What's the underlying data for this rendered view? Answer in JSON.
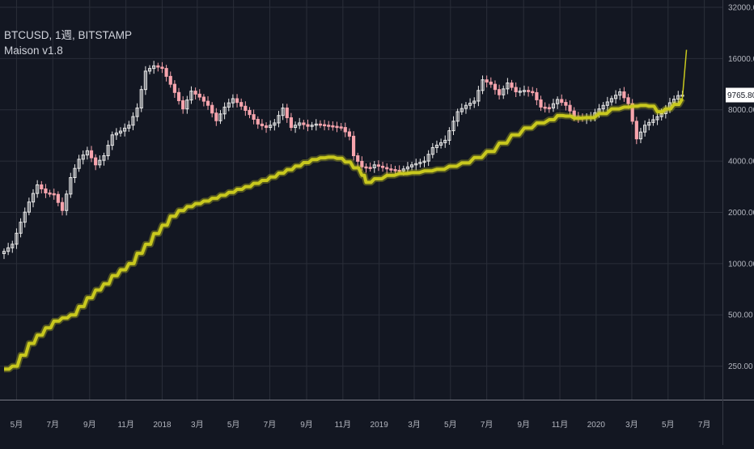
{
  "legend": {
    "symbol": "BTCUSD, 1週, BITSTAMP",
    "indicator": "Maison v1.8"
  },
  "colors": {
    "background": "#131722",
    "grid": "#2a2e39",
    "axis_text": "#b2b5be",
    "candle_up": "#e8e8e8",
    "candle_down": "#f7a4ad",
    "indicator": "#c8c81e",
    "price_label_bg": "#ffffff",
    "price_label_text": "#131722"
  },
  "chart_data": {
    "type": "candlestick",
    "title": "BTCUSD, 1週, BITSTAMP",
    "y_scale": "log",
    "ylim": [
      200,
      32000
    ],
    "xlim": [
      "2017-04-10",
      "2020-08-10"
    ],
    "grid": true,
    "y_ticks": [
      {
        "value": 32000,
        "label": "32000.00"
      },
      {
        "value": 16000,
        "label": "16000.00"
      },
      {
        "value": 8000,
        "label": "8000.00"
      },
      {
        "value": 4000,
        "label": "4000.00"
      },
      {
        "value": 2000,
        "label": "2000.00"
      },
      {
        "value": 1000,
        "label": "1000.00"
      },
      {
        "value": 500,
        "label": "500.00"
      },
      {
        "value": 250,
        "label": "250.00"
      }
    ],
    "x_ticks": [
      {
        "date": "2017-05-01",
        "label": "5月"
      },
      {
        "date": "2017-07-01",
        "label": "7月"
      },
      {
        "date": "2017-09-01",
        "label": "9月"
      },
      {
        "date": "2017-11-01",
        "label": "11月"
      },
      {
        "date": "2018-01-01",
        "label": "2018"
      },
      {
        "date": "2018-03-01",
        "label": "3月"
      },
      {
        "date": "2018-05-01",
        "label": "5月"
      },
      {
        "date": "2018-07-01",
        "label": "7月"
      },
      {
        "date": "2018-09-01",
        "label": "9月"
      },
      {
        "date": "2018-11-01",
        "label": "11月"
      },
      {
        "date": "2019-01-01",
        "label": "2019"
      },
      {
        "date": "2019-03-01",
        "label": "3月"
      },
      {
        "date": "2019-05-01",
        "label": "5月"
      },
      {
        "date": "2019-07-01",
        "label": "7月"
      },
      {
        "date": "2019-09-01",
        "label": "9月"
      },
      {
        "date": "2019-11-01",
        "label": "11月"
      },
      {
        "date": "2020-01-01",
        "label": "2020"
      },
      {
        "date": "2020-03-01",
        "label": "3月"
      },
      {
        "date": "2020-05-01",
        "label": "5月"
      },
      {
        "date": "2020-07-01",
        "label": "7月"
      }
    ],
    "last_price": {
      "value": 9765.8,
      "label": "9765.80"
    },
    "close_anchors": [
      [
        "2017-04-10",
        1180
      ],
      [
        "2017-04-24",
        1300
      ],
      [
        "2017-05-08",
        1750
      ],
      [
        "2017-05-22",
        2300
      ],
      [
        "2017-06-05",
        2900
      ],
      [
        "2017-06-19",
        2600
      ],
      [
        "2017-07-03",
        2550
      ],
      [
        "2017-07-17",
        2050
      ],
      [
        "2017-07-31",
        3200
      ],
      [
        "2017-08-14",
        4100
      ],
      [
        "2017-08-28",
        4600
      ],
      [
        "2017-09-11",
        3800
      ],
      [
        "2017-09-25",
        4300
      ],
      [
        "2017-10-09",
        5700
      ],
      [
        "2017-10-23",
        6000
      ],
      [
        "2017-11-06",
        6500
      ],
      [
        "2017-11-20",
        8200
      ],
      [
        "2017-12-04",
        13500
      ],
      [
        "2017-12-18",
        14500
      ],
      [
        "2018-01-01",
        14000
      ],
      [
        "2018-01-15",
        11300
      ],
      [
        "2018-02-05",
        8100
      ],
      [
        "2018-02-19",
        10300
      ],
      [
        "2018-03-05",
        9500
      ],
      [
        "2018-03-19",
        8500
      ],
      [
        "2018-04-02",
        6900
      ],
      [
        "2018-04-16",
        8300
      ],
      [
        "2018-04-30",
        9300
      ],
      [
        "2018-05-14",
        8400
      ],
      [
        "2018-05-28",
        7500
      ],
      [
        "2018-06-11",
        6600
      ],
      [
        "2018-06-25",
        6300
      ],
      [
        "2018-07-09",
        6700
      ],
      [
        "2018-07-23",
        8200
      ],
      [
        "2018-08-06",
        6300
      ],
      [
        "2018-08-20",
        6700
      ],
      [
        "2018-09-03",
        6400
      ],
      [
        "2018-09-17",
        6600
      ],
      [
        "2018-10-01",
        6500
      ],
      [
        "2018-10-15",
        6400
      ],
      [
        "2018-10-29",
        6300
      ],
      [
        "2018-11-12",
        5600
      ],
      [
        "2018-11-19",
        4300
      ],
      [
        "2018-12-03",
        3700
      ],
      [
        "2018-12-17",
        3650
      ],
      [
        "2018-12-24",
        3800
      ],
      [
        "2019-01-14",
        3600
      ],
      [
        "2019-02-04",
        3500
      ],
      [
        "2019-02-25",
        3800
      ],
      [
        "2019-03-18",
        4000
      ],
      [
        "2019-04-01",
        4800
      ],
      [
        "2019-04-22",
        5300
      ],
      [
        "2019-05-13",
        7800
      ],
      [
        "2019-05-27",
        8500
      ],
      [
        "2019-06-10",
        9000
      ],
      [
        "2019-06-24",
        12000
      ],
      [
        "2019-07-08",
        11300
      ],
      [
        "2019-07-22",
        9800
      ],
      [
        "2019-08-05",
        11500
      ],
      [
        "2019-08-19",
        10200
      ],
      [
        "2019-09-02",
        10400
      ],
      [
        "2019-09-16",
        10100
      ],
      [
        "2019-09-30",
        8300
      ],
      [
        "2019-10-14",
        8200
      ],
      [
        "2019-10-28",
        9200
      ],
      [
        "2019-11-11",
        8500
      ],
      [
        "2019-11-25",
        7300
      ],
      [
        "2019-12-09",
        7100
      ],
      [
        "2019-12-23",
        7300
      ],
      [
        "2020-01-06",
        8100
      ],
      [
        "2020-01-20",
        8900
      ],
      [
        "2020-02-10",
        10200
      ],
      [
        "2020-02-24",
        8700
      ],
      [
        "2020-03-09",
        5400
      ],
      [
        "2020-03-23",
        6500
      ],
      [
        "2020-04-06",
        7000
      ],
      [
        "2020-04-20",
        7600
      ],
      [
        "2020-05-04",
        8800
      ],
      [
        "2020-05-18",
        9700
      ],
      [
        "2020-05-25",
        9765.8
      ]
    ],
    "indicator": {
      "name": "Maison v1.8",
      "points": [
        [
          "2017-04-10",
          240
        ],
        [
          "2017-04-24",
          250
        ],
        [
          "2017-05-08",
          290
        ],
        [
          "2017-05-22",
          340
        ],
        [
          "2017-06-05",
          380
        ],
        [
          "2017-06-19",
          420
        ],
        [
          "2017-07-03",
          460
        ],
        [
          "2017-07-17",
          480
        ],
        [
          "2017-07-31",
          500
        ],
        [
          "2017-08-14",
          560
        ],
        [
          "2017-08-28",
          630
        ],
        [
          "2017-09-11",
          700
        ],
        [
          "2017-09-25",
          760
        ],
        [
          "2017-10-09",
          850
        ],
        [
          "2017-10-23",
          920
        ],
        [
          "2017-11-06",
          1000
        ],
        [
          "2017-11-20",
          1150
        ],
        [
          "2017-12-04",
          1300
        ],
        [
          "2017-12-18",
          1500
        ],
        [
          "2018-01-01",
          1680
        ],
        [
          "2018-01-15",
          1900
        ],
        [
          "2018-01-29",
          2050
        ],
        [
          "2018-02-12",
          2160
        ],
        [
          "2018-02-26",
          2250
        ],
        [
          "2018-03-12",
          2330
        ],
        [
          "2018-03-26",
          2420
        ],
        [
          "2018-04-09",
          2520
        ],
        [
          "2018-04-23",
          2620
        ],
        [
          "2018-05-07",
          2730
        ],
        [
          "2018-05-21",
          2830
        ],
        [
          "2018-06-04",
          2960
        ],
        [
          "2018-06-18",
          3080
        ],
        [
          "2018-07-02",
          3230
        ],
        [
          "2018-07-16",
          3400
        ],
        [
          "2018-07-30",
          3560
        ],
        [
          "2018-08-13",
          3740
        ],
        [
          "2018-08-27",
          3920
        ],
        [
          "2018-09-10",
          4080
        ],
        [
          "2018-09-24",
          4180
        ],
        [
          "2018-10-08",
          4220
        ],
        [
          "2018-10-22",
          4150
        ],
        [
          "2018-11-05",
          3950
        ],
        [
          "2018-11-19",
          3650
        ],
        [
          "2018-12-03",
          3300
        ],
        [
          "2018-12-10",
          3000
        ],
        [
          "2018-12-24",
          3150
        ],
        [
          "2019-01-14",
          3300
        ],
        [
          "2019-02-04",
          3380
        ],
        [
          "2019-02-25",
          3420
        ],
        [
          "2019-03-18",
          3500
        ],
        [
          "2019-04-08",
          3580
        ],
        [
          "2019-04-29",
          3730
        ],
        [
          "2019-05-20",
          3900
        ],
        [
          "2019-06-10",
          4200
        ],
        [
          "2019-07-01",
          4550
        ],
        [
          "2019-07-22",
          5100
        ],
        [
          "2019-08-12",
          5700
        ],
        [
          "2019-09-02",
          6250
        ],
        [
          "2019-09-23",
          6700
        ],
        [
          "2019-10-14",
          7000
        ],
        [
          "2019-10-28",
          7400
        ],
        [
          "2019-11-11",
          7350
        ],
        [
          "2019-11-25",
          7150
        ],
        [
          "2019-12-16",
          7200
        ],
        [
          "2020-01-06",
          7600
        ],
        [
          "2020-01-27",
          8100
        ],
        [
          "2020-02-17",
          8300
        ],
        [
          "2020-03-02",
          8400
        ],
        [
          "2020-03-16",
          8500
        ],
        [
          "2020-03-30",
          8400
        ],
        [
          "2020-04-13",
          7800
        ],
        [
          "2020-04-27",
          8100
        ],
        [
          "2020-05-11",
          8600
        ],
        [
          "2020-05-25",
          9300
        ],
        [
          "2020-06-01",
          18000
        ]
      ]
    }
  }
}
